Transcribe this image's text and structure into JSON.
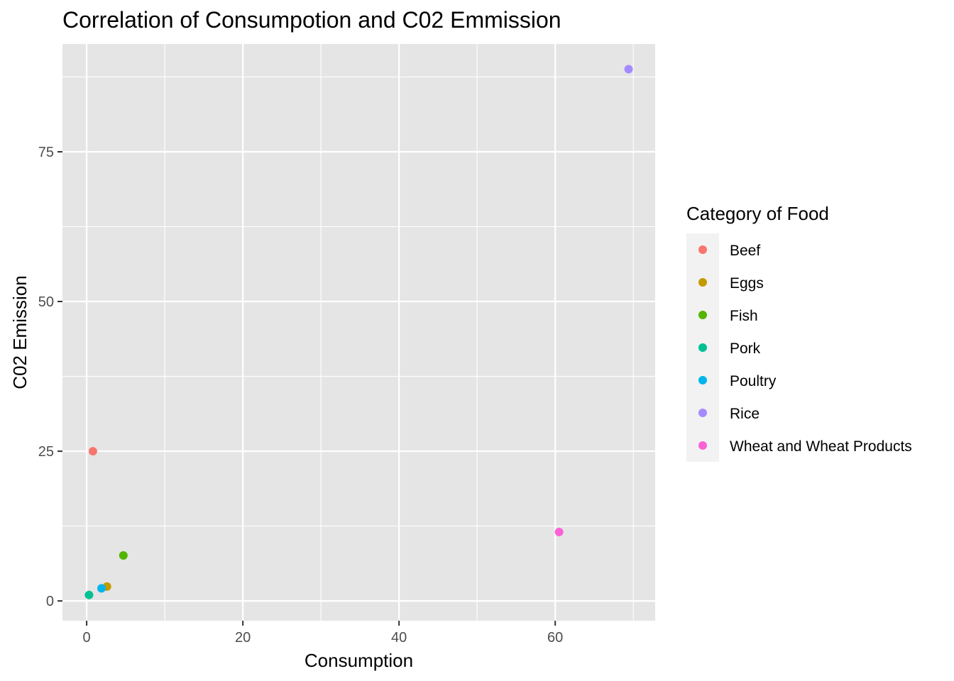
{
  "chart_data": {
    "type": "scatter",
    "title": "Correlation of Consumpotion and C02 Emmission",
    "xlabel": "Consumption",
    "ylabel": "C02 Emission",
    "xlim": [
      -3.1,
      72.8
    ],
    "ylim": [
      -3.3,
      93.0
    ],
    "x_ticks": [
      0,
      20,
      40,
      60
    ],
    "x_tick_labels": [
      "0",
      "20",
      "40",
      "60"
    ],
    "y_ticks": [
      0,
      25,
      50,
      75
    ],
    "y_tick_labels": [
      "0",
      "25",
      "50",
      "75"
    ],
    "grid": true,
    "legend": {
      "title": "Category of Food",
      "position": "right"
    },
    "series": [
      {
        "name": "Beef",
        "color": "#F8766D",
        "x": 0.8,
        "y": 25.0
      },
      {
        "name": "Eggs",
        "color": "#C49A00",
        "x": 2.6,
        "y": 2.4
      },
      {
        "name": "Fish",
        "color": "#53B400",
        "x": 4.7,
        "y": 7.6
      },
      {
        "name": "Pork",
        "color": "#00C094",
        "x": 0.3,
        "y": 1.0
      },
      {
        "name": "Poultry",
        "color": "#00B6EB",
        "x": 1.9,
        "y": 2.1
      },
      {
        "name": "Rice",
        "color": "#A58AFF",
        "x": 69.4,
        "y": 88.8
      },
      {
        "name": "Wheat and Wheat Products",
        "color": "#FB61D7",
        "x": 60.5,
        "y": 11.5
      }
    ],
    "colors": {
      "panel_background": "#E5E5E5",
      "grid_line": "#FFFFFF",
      "tick_mark": "#333333",
      "legend_key_background": "#F2F2F2"
    }
  }
}
